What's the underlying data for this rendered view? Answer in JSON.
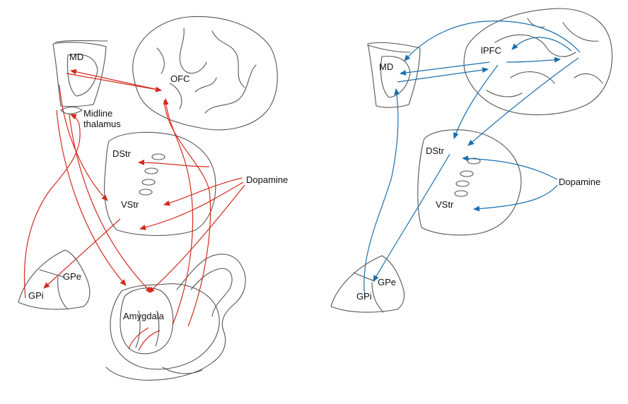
{
  "colors": {
    "left_pathways": "#d42a1c",
    "right_pathways": "#1a6fae",
    "outline": "#555555"
  },
  "left_panel": {
    "md": "MD",
    "ofc": "OFC",
    "midline_line1": "Midline",
    "midline_line2": "thalamus",
    "dstr": "DStr",
    "vstr": "VStr",
    "dopamine": "Dopamine",
    "gpe": "GPe",
    "gpi": "GPi",
    "amygdala": "Amygdala"
  },
  "right_panel": {
    "md": "MD",
    "lpfc": "lPFC",
    "dstr": "DStr",
    "vstr": "VStr",
    "dopamine": "Dopamine",
    "gpe": "GPe",
    "gpi": "GPi"
  }
}
